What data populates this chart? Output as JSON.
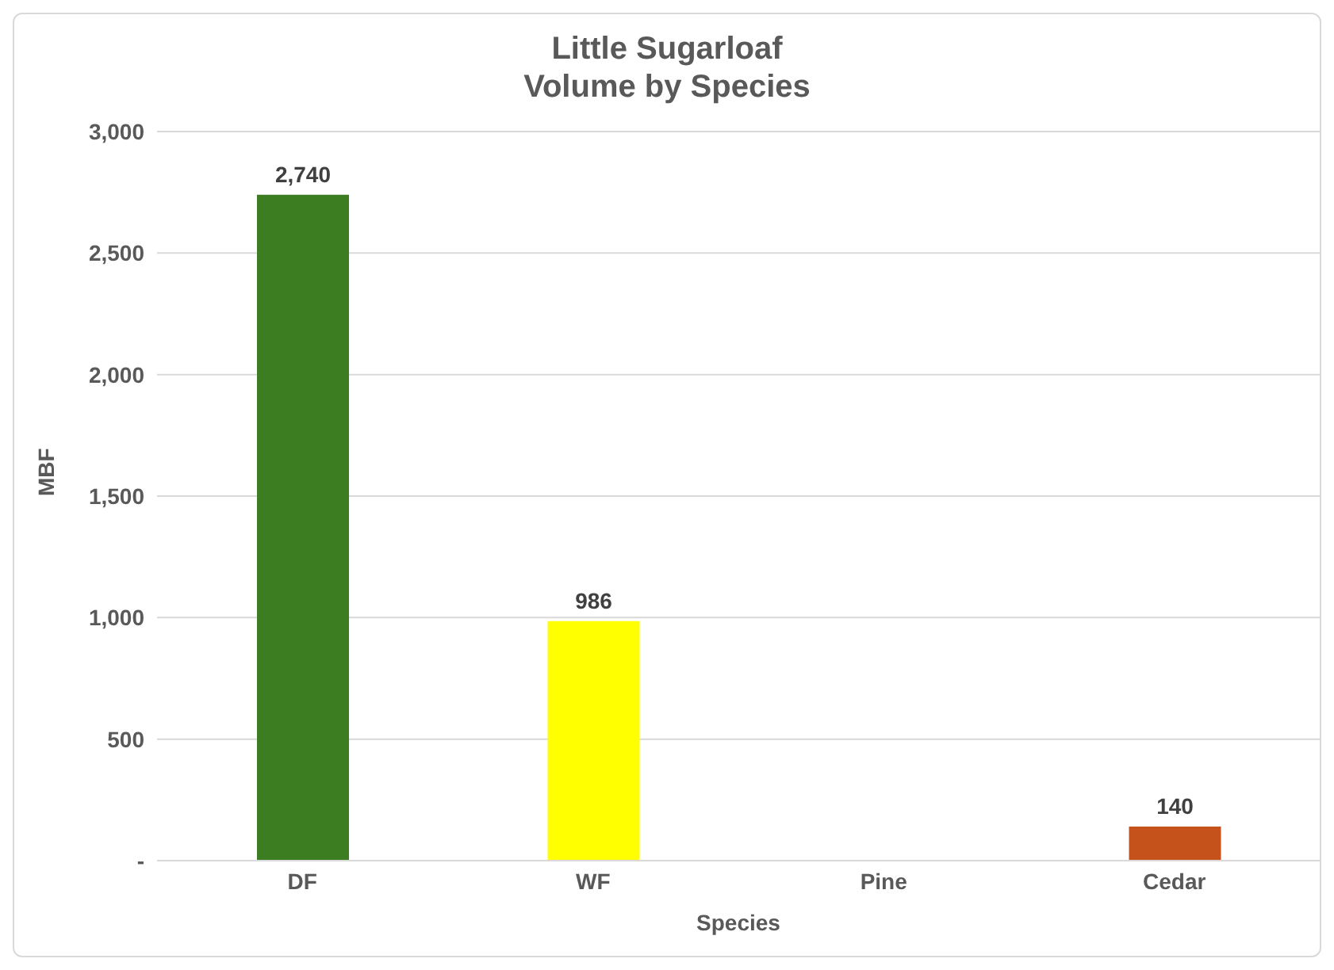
{
  "chart_data": {
    "type": "bar",
    "title": "Little Sugarloaf\nVolume by Species",
    "xlabel": "Species",
    "ylabel": "MBF",
    "categories": [
      "DF",
      "WF",
      "Pine",
      "Cedar"
    ],
    "values": [
      2740,
      986,
      null,
      140
    ],
    "colors": [
      "#3d7d22",
      "#ffff00",
      "#7f7f7f",
      "#c5521b"
    ],
    "value_labels": [
      "2,740",
      "986",
      null,
      "140"
    ],
    "ylim": [
      0,
      3000
    ],
    "yticks": [
      {
        "value": 0,
        "label": "-"
      },
      500,
      {
        "value": 1000,
        "label": "1,000"
      },
      {
        "value": 1500,
        "label": "1,500"
      },
      {
        "value": 2000,
        "label": "2,000"
      },
      {
        "value": 2500,
        "label": "2,500"
      },
      {
        "value": 3000,
        "label": "3,000"
      }
    ],
    "grid": "y",
    "legend": false
  }
}
